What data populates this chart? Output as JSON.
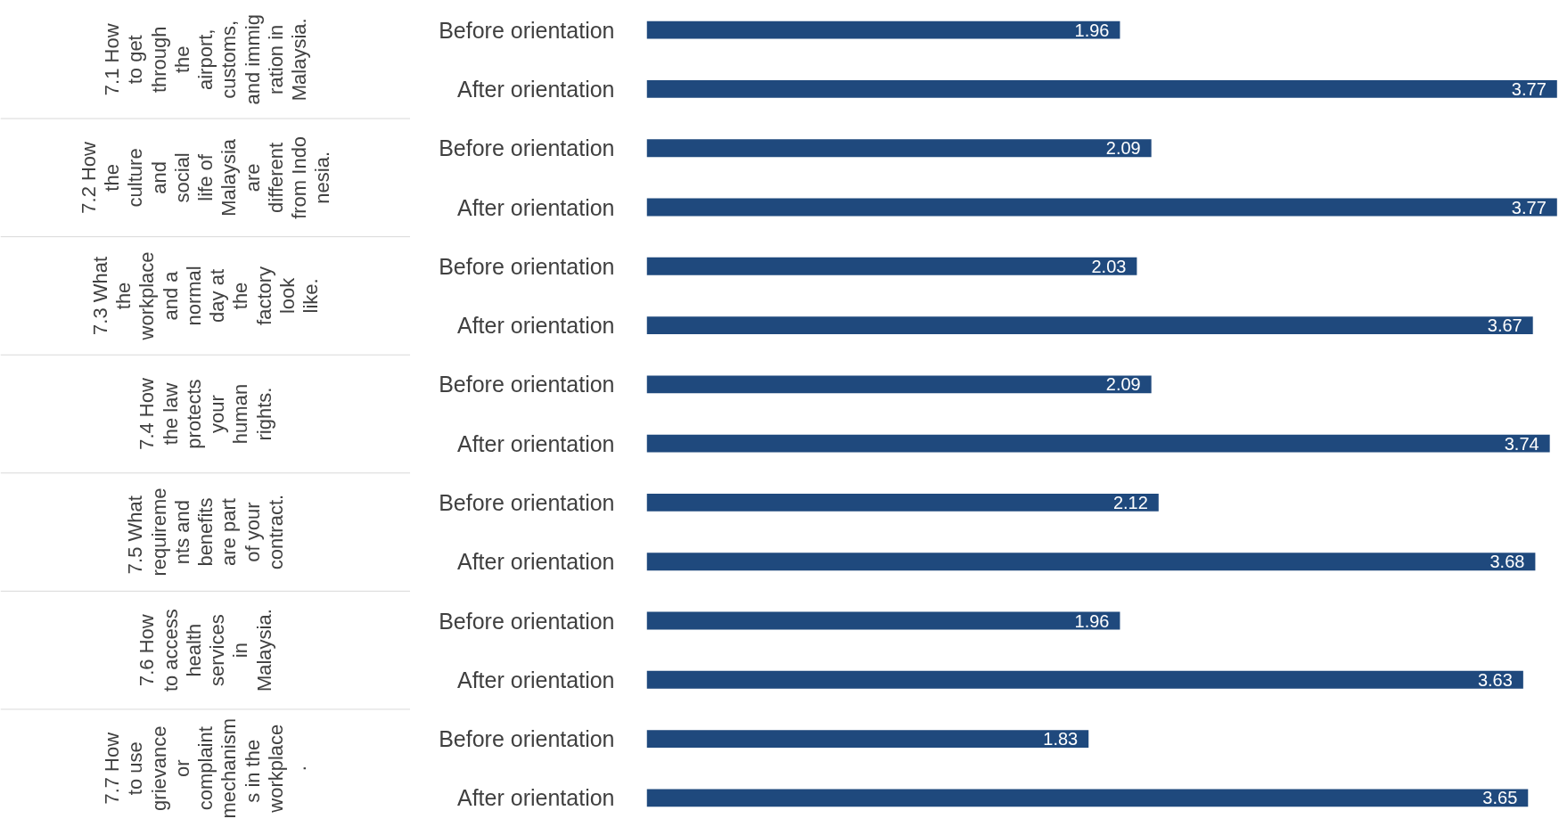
{
  "chart_data": {
    "type": "bar",
    "orientation": "horizontal",
    "categories": [
      "Before orientation",
      "After orientation",
      "Before orientation",
      "After orientation",
      "Before orientation",
      "After orientation",
      "Before orientation",
      "After orientation",
      "Before orientation",
      "After orientation",
      "Before orientation",
      "After orientation",
      "Before orientation",
      "After orientation"
    ],
    "values": [
      1.96,
      3.77,
      2.09,
      3.77,
      2.03,
      3.67,
      2.09,
      3.74,
      2.12,
      3.68,
      1.96,
      3.63,
      1.83,
      3.65
    ],
    "color": "#1f497d",
    "xlim": [
      0,
      3.78
    ],
    "tick_labels": "y",
    "data_labels": true,
    "grid": false,
    "annotations": [
      "7.1 How to get through the airport, customs, and immigration in Malaysia.",
      "7.2 How the culture and social life of Malaysia are different from Indonesia.",
      "7.3 What the workplace and a normal day at the factory look like.",
      "7.4 How the law protects your human rights.",
      "7.5 What requirements and benefits are part of your contract.",
      "7.6 How to access health services in Malaysia.",
      "7.7 How to use grievance or complaint mechanisms in the workplace."
    ]
  }
}
